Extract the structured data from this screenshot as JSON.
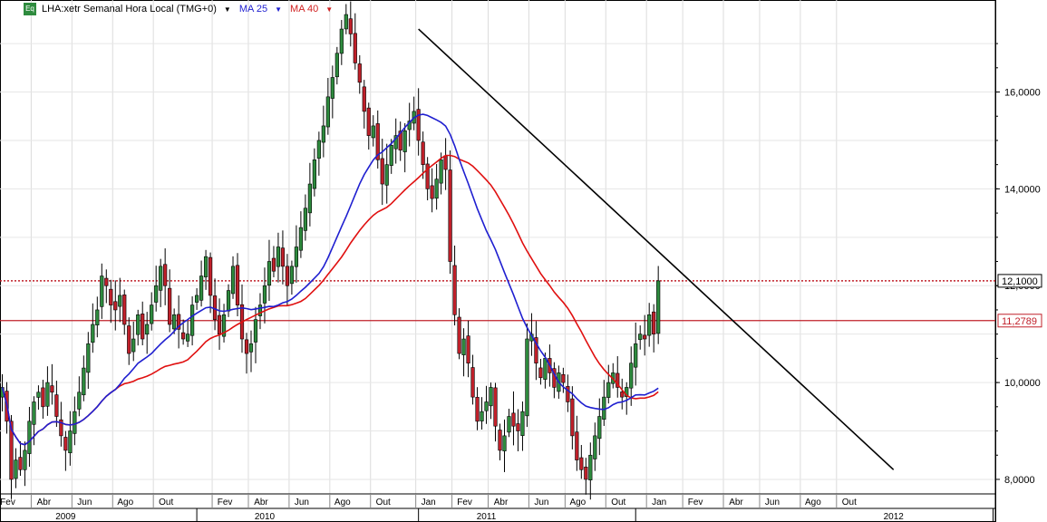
{
  "legend": {
    "badge": "Eq",
    "title": "LHA:xetr Semanal Hora Local (TMG+0)",
    "ma25": "MA 25",
    "ma40": "MA 40"
  },
  "colors": {
    "ma25": "#1f1fd0",
    "ma40": "#e01010",
    "trendline": "#000000",
    "resistance": "#c0202a",
    "support_label_border": "#c0202a",
    "up_candle": "#2e8b3e",
    "down_candle": "#c0202a"
  },
  "chart_data": {
    "type": "candlestick",
    "ylim": [
      7.7,
      17.9
    ],
    "yticks": [
      "8,0000",
      "10,0000",
      "12,0000",
      "14,0000",
      "16,0000"
    ],
    "ytick_values": [
      8,
      10,
      12,
      14,
      16
    ],
    "month_labels": [
      "Fev",
      "Abr",
      "Jun",
      "Ago",
      "Out",
      "Fev",
      "Abr",
      "Jun",
      "Ago",
      "Out",
      "Jan",
      "Fev",
      "Abr",
      "Jun",
      "Ago",
      "Out",
      "Jan",
      "Fev",
      "Abr",
      "Jun",
      "Ago",
      "Out"
    ],
    "month_index": [
      0,
      8,
      17,
      26,
      35,
      48,
      56,
      65,
      74,
      83,
      93,
      101,
      109,
      118,
      126,
      135,
      144,
      152,
      161,
      169,
      178,
      186
    ],
    "year_labels": [
      "2009",
      "2010",
      "2011",
      "2012"
    ],
    "year_index": [
      14,
      58,
      107,
      197
    ],
    "levels": [
      {
        "name": "12,1000",
        "value": 12.1,
        "style": "dotted"
      },
      {
        "name": "11,2789",
        "value": 11.2789,
        "style": "solid"
      }
    ],
    "trendline": {
      "from": [
        92,
        17.3
      ],
      "to": [
        197,
        8.2
      ]
    },
    "closes": [
      9.9,
      9.2,
      8.0,
      8.4,
      8.2,
      8.6,
      9.2,
      9.6,
      9.8,
      9.5,
      10.0,
      9.8,
      9.3,
      8.9,
      8.6,
      9.0,
      9.4,
      9.8,
      10.3,
      10.8,
      11.2,
      11.5,
      12.2,
      12.0,
      11.6,
      11.5,
      11.8,
      11.2,
      10.6,
      10.9,
      11.4,
      10.9,
      11.2,
      11.6,
      12.0,
      12.4,
      12.0,
      11.2,
      11.4,
      11.1,
      10.9,
      11.0,
      11.6,
      11.8,
      12.2,
      12.6,
      11.8,
      11.3,
      11.0,
      11.4,
      11.9,
      12.4,
      11.6,
      10.9,
      10.6,
      10.8,
      11.3,
      11.6,
      12.0,
      12.5,
      12.3,
      12.8,
      12.4,
      12.0,
      12.4,
      12.8,
      13.2,
      13.6,
      14.1,
      14.6,
      15.0,
      15.3,
      15.9,
      16.3,
      16.8,
      17.3,
      17.6,
      17.2,
      16.6,
      16.2,
      15.6,
      15.1,
      15.3,
      14.6,
      14.1,
      14.5,
      14.9,
      15.1,
      14.8,
      15.2,
      15.4,
      15.6,
      15.0,
      14.5,
      14.0,
      13.8,
      14.2,
      14.6,
      14.4,
      12.5,
      11.4,
      10.6,
      10.9,
      10.4,
      9.7,
      9.2,
      9.4,
      9.6,
      9.9,
      9.1,
      8.6,
      8.9,
      9.3,
      9.1,
      9.0,
      9.4,
      10.9,
      11.0,
      10.4,
      10.1,
      10.5,
      10.2,
      9.9,
      10.2,
      10.0,
      9.6,
      8.9,
      8.4,
      8.2,
      8.0,
      8.5,
      8.9,
      9.3,
      9.7,
      10.0,
      10.2,
      9.9,
      9.7,
      9.9,
      10.4,
      10.8,
      11.0,
      10.9,
      11.4,
      11.0,
      12.1
    ],
    "series": [
      {
        "name": "MA 25"
      },
      {
        "name": "MA 40"
      }
    ]
  }
}
